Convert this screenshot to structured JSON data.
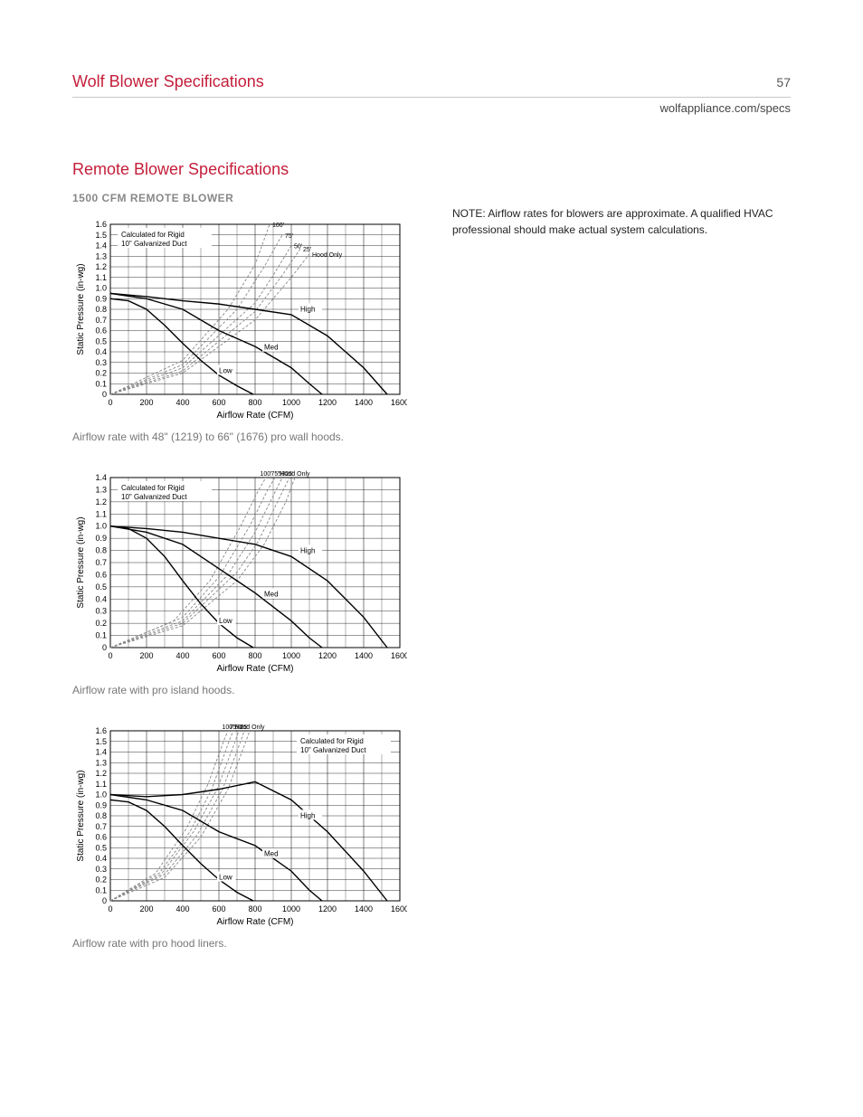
{
  "header": {
    "title": "Wolf Blower Specifications",
    "page_number": "57",
    "url": "wolfappliance.com/specs"
  },
  "section": {
    "title": "Remote Blower Specifications",
    "subtitle": "1500 CFM REMOTE BLOWER"
  },
  "note": "NOTE: Airflow rates for blowers are approximate. A qualified HVAC professional should make actual system calculations.",
  "chart_common": {
    "x_label": "Airflow Rate (CFM)",
    "y_label": "Static Pressure (in-wg)",
    "xlim": [
      0,
      1600
    ],
    "x_ticks": [
      0,
      200,
      400,
      600,
      800,
      1000,
      1200,
      1400,
      1600
    ],
    "grid_color": "#000000",
    "background_color": "#ffffff",
    "line_color": "#000000",
    "dashed_color": "#888888",
    "fan_curve_labels": [
      "Low",
      "Med",
      "High"
    ],
    "duct_labels": [
      "100'",
      "75'",
      "50'",
      "25'",
      "Hood Only"
    ],
    "calc_note": "Calculated for Rigid\n10\" Galvanized Duct",
    "font_size_axis": 10,
    "font_size_tick": 9,
    "font_size_inline": 8
  },
  "chart1": {
    "caption": "Airflow rate with 48\" (1219) to 66\" (1676) pro wall hoods.",
    "ylim": [
      0,
      1.6
    ],
    "y_ticks": [
      0,
      0.1,
      0.2,
      0.3,
      0.4,
      0.5,
      0.6,
      0.7,
      0.8,
      0.9,
      1.0,
      1.1,
      1.2,
      1.3,
      1.4,
      1.5,
      1.6
    ],
    "fan_curves": {
      "Low": [
        [
          0,
          0.9
        ],
        [
          100,
          0.88
        ],
        [
          200,
          0.8
        ],
        [
          300,
          0.65
        ],
        [
          400,
          0.48
        ],
        [
          500,
          0.32
        ],
        [
          600,
          0.18
        ],
        [
          700,
          0.08
        ],
        [
          790,
          0
        ]
      ],
      "Med": [
        [
          0,
          0.95
        ],
        [
          200,
          0.9
        ],
        [
          400,
          0.8
        ],
        [
          600,
          0.6
        ],
        [
          800,
          0.45
        ],
        [
          1000,
          0.25
        ],
        [
          1100,
          0.1
        ],
        [
          1170,
          0
        ]
      ],
      "High": [
        [
          0,
          0.95
        ],
        [
          200,
          0.92
        ],
        [
          400,
          0.88
        ],
        [
          600,
          0.85
        ],
        [
          800,
          0.8
        ],
        [
          1000,
          0.75
        ],
        [
          1200,
          0.55
        ],
        [
          1400,
          0.25
        ],
        [
          1530,
          0
        ]
      ]
    },
    "system_curves": {
      "HoodOnly": [
        [
          0,
          0
        ],
        [
          400,
          0.2
        ],
        [
          800,
          0.7
        ],
        [
          1000,
          1.1
        ],
        [
          1100,
          1.32
        ]
      ],
      "25": [
        [
          0,
          0
        ],
        [
          400,
          0.22
        ],
        [
          800,
          0.78
        ],
        [
          950,
          1.12
        ],
        [
          1050,
          1.37
        ]
      ],
      "50": [
        [
          0,
          0
        ],
        [
          400,
          0.25
        ],
        [
          800,
          0.86
        ],
        [
          900,
          1.12
        ],
        [
          1000,
          1.4
        ]
      ],
      "75": [
        [
          0,
          0
        ],
        [
          400,
          0.28
        ],
        [
          700,
          0.8
        ],
        [
          850,
          1.2
        ],
        [
          950,
          1.5
        ]
      ],
      "100": [
        [
          0,
          0
        ],
        [
          400,
          0.32
        ],
        [
          650,
          0.8
        ],
        [
          800,
          1.22
        ],
        [
          880,
          1.6
        ]
      ]
    },
    "calc_note_pos": "top-left",
    "duct_label_side": "right"
  },
  "chart2": {
    "caption": "Airflow rate with pro island hoods.",
    "ylim": [
      0,
      1.4
    ],
    "y_ticks": [
      0,
      0.1,
      0.2,
      0.3,
      0.4,
      0.5,
      0.6,
      0.7,
      0.8,
      0.9,
      1.0,
      1.1,
      1.2,
      1.3,
      1.4
    ],
    "fan_curves": {
      "Low": [
        [
          0,
          1.0
        ],
        [
          100,
          0.98
        ],
        [
          200,
          0.9
        ],
        [
          300,
          0.75
        ],
        [
          400,
          0.55
        ],
        [
          500,
          0.36
        ],
        [
          600,
          0.2
        ],
        [
          700,
          0.08
        ],
        [
          790,
          0
        ]
      ],
      "Med": [
        [
          0,
          1.0
        ],
        [
          200,
          0.95
        ],
        [
          400,
          0.85
        ],
        [
          600,
          0.65
        ],
        [
          800,
          0.45
        ],
        [
          1000,
          0.22
        ],
        [
          1100,
          0.08
        ],
        [
          1170,
          0
        ]
      ],
      "High": [
        [
          0,
          1.0
        ],
        [
          200,
          0.98
        ],
        [
          400,
          0.95
        ],
        [
          600,
          0.9
        ],
        [
          800,
          0.85
        ],
        [
          1000,
          0.75
        ],
        [
          1200,
          0.55
        ],
        [
          1400,
          0.25
        ],
        [
          1530,
          0
        ]
      ]
    },
    "system_curves": {
      "HoodOnly": [
        [
          0,
          0
        ],
        [
          400,
          0.18
        ],
        [
          700,
          0.55
        ],
        [
          850,
          0.85
        ],
        [
          970,
          1.2
        ],
        [
          1020,
          1.4
        ]
      ],
      "25": [
        [
          0,
          0
        ],
        [
          400,
          0.2
        ],
        [
          700,
          0.62
        ],
        [
          820,
          0.88
        ],
        [
          940,
          1.25
        ],
        [
          990,
          1.4
        ]
      ],
      "50": [
        [
          0,
          0
        ],
        [
          400,
          0.22
        ],
        [
          650,
          0.6
        ],
        [
          800,
          0.95
        ],
        [
          900,
          1.25
        ],
        [
          950,
          1.4
        ]
      ],
      "75": [
        [
          0,
          0
        ],
        [
          400,
          0.25
        ],
        [
          600,
          0.58
        ],
        [
          770,
          1.0
        ],
        [
          870,
          1.3
        ],
        [
          910,
          1.4
        ]
      ],
      "100": [
        [
          0,
          0
        ],
        [
          350,
          0.22
        ],
        [
          550,
          0.55
        ],
        [
          720,
          1.0
        ],
        [
          820,
          1.3
        ],
        [
          860,
          1.4
        ]
      ]
    },
    "calc_note_pos": "top-left",
    "duct_label_side": "top"
  },
  "chart3": {
    "caption": "Airflow rate with pro hood liners.",
    "ylim": [
      0,
      1.6
    ],
    "y_ticks": [
      0,
      0.1,
      0.2,
      0.3,
      0.4,
      0.5,
      0.6,
      0.7,
      0.8,
      0.9,
      1.0,
      1.1,
      1.2,
      1.3,
      1.4,
      1.5,
      1.6
    ],
    "fan_curves": {
      "Low": [
        [
          0,
          0.95
        ],
        [
          100,
          0.93
        ],
        [
          200,
          0.85
        ],
        [
          300,
          0.7
        ],
        [
          400,
          0.52
        ],
        [
          500,
          0.35
        ],
        [
          600,
          0.2
        ],
        [
          700,
          0.08
        ],
        [
          790,
          0
        ]
      ],
      "Med": [
        [
          0,
          1.0
        ],
        [
          200,
          0.95
        ],
        [
          400,
          0.85
        ],
        [
          600,
          0.65
        ],
        [
          800,
          0.52
        ],
        [
          1000,
          0.28
        ],
        [
          1100,
          0.1
        ],
        [
          1170,
          0
        ]
      ],
      "High": [
        [
          0,
          1.0
        ],
        [
          200,
          0.98
        ],
        [
          400,
          1.0
        ],
        [
          600,
          1.05
        ],
        [
          800,
          1.12
        ],
        [
          1000,
          0.95
        ],
        [
          1200,
          0.65
        ],
        [
          1400,
          0.28
        ],
        [
          1530,
          0
        ]
      ]
    },
    "system_curves": {
      "HoodOnly": [
        [
          0,
          0
        ],
        [
          300,
          0.22
        ],
        [
          500,
          0.6
        ],
        [
          650,
          1.05
        ],
        [
          760,
          1.55
        ],
        [
          770,
          1.6
        ]
      ],
      "25": [
        [
          0,
          0
        ],
        [
          300,
          0.25
        ],
        [
          480,
          0.62
        ],
        [
          620,
          1.05
        ],
        [
          720,
          1.5
        ],
        [
          740,
          1.6
        ]
      ],
      "50": [
        [
          0,
          0
        ],
        [
          280,
          0.25
        ],
        [
          460,
          0.65
        ],
        [
          590,
          1.05
        ],
        [
          690,
          1.5
        ],
        [
          710,
          1.6
        ]
      ],
      "75": [
        [
          0,
          0
        ],
        [
          270,
          0.26
        ],
        [
          440,
          0.65
        ],
        [
          560,
          1.05
        ],
        [
          660,
          1.52
        ],
        [
          680,
          1.6
        ]
      ],
      "100": [
        [
          0,
          0
        ],
        [
          250,
          0.26
        ],
        [
          420,
          0.68
        ],
        [
          540,
          1.1
        ],
        [
          630,
          1.52
        ],
        [
          650,
          1.6
        ]
      ]
    },
    "calc_note_pos": "top-right",
    "duct_label_side": "top"
  }
}
